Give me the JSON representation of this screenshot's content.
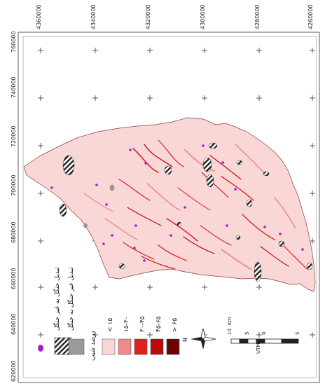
{
  "grid": {
    "y_ticks": [
      "4360000",
      "4340000",
      "4320000",
      "4300000",
      "4280000",
      "4260000"
    ],
    "x_ticks": [
      "760000",
      "740000",
      "720000",
      "700000",
      "680000",
      "660000",
      "640000",
      "620000"
    ]
  },
  "legend": {
    "symbols": [
      {
        "label": "تبدیل جنگل به غیر جنگل",
        "pattern": "hatch",
        "color": "#333333"
      },
      {
        "label": "تبدیل غیر جنگل به جنگل",
        "pattern": "solid",
        "color": "#9a9a9a"
      },
      {
        "label": "",
        "pattern": "dot",
        "color": "#a020c8"
      }
    ],
    "slope_title": "درصد شیب",
    "classes": [
      {
        "label": "< ۱۵",
        "color": "#f9d7d7"
      },
      {
        "label": "۱۵-۳۰",
        "color": "#f08a8a"
      },
      {
        "label": "۳۰-۴۵",
        "color": "#e02020"
      },
      {
        "label": "۴۵-۶۵",
        "color": "#b80c0c"
      },
      {
        "label": "> ۶۵",
        "color": "#6a0404"
      }
    ]
  },
  "scale_bar": {
    "labels": [
      "10",
      "5",
      "0",
      "5"
    ],
    "unit": "Km",
    "projection": "UTM"
  },
  "north_arrow": {
    "label": "N"
  }
}
